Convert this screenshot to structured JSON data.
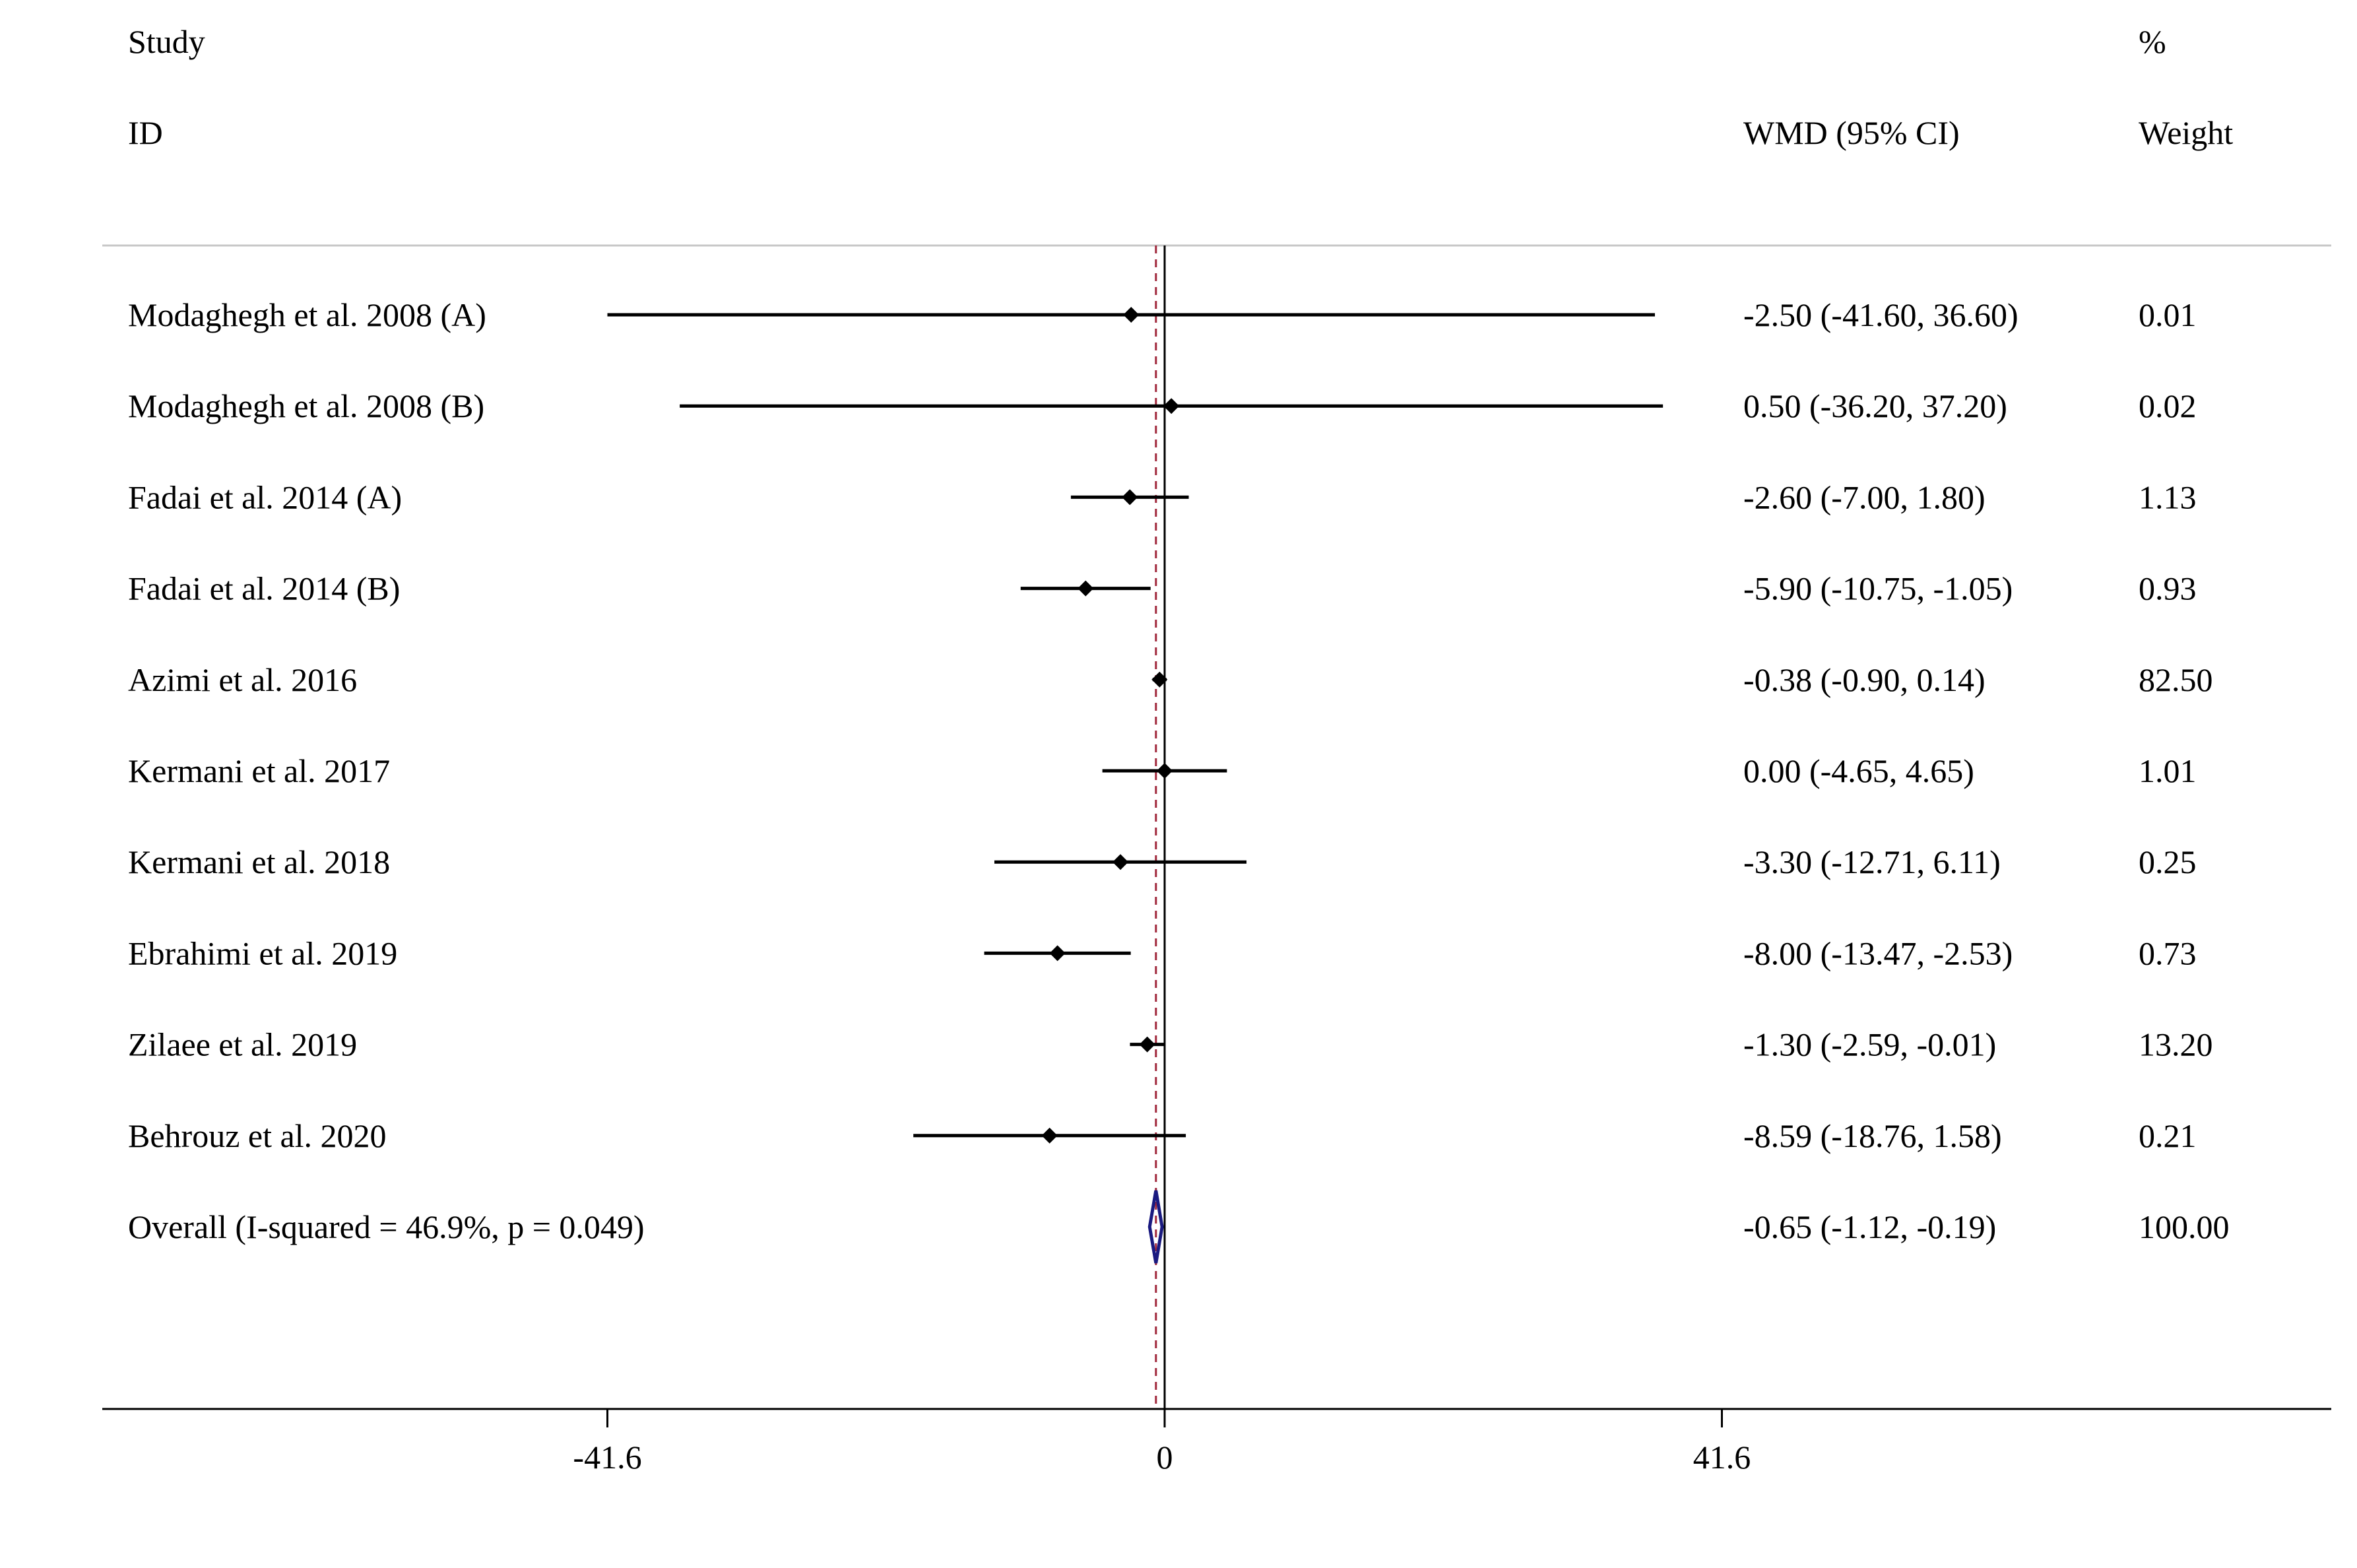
{
  "chart_data": {
    "type": "forest",
    "headers": {
      "study_line1": "Study",
      "study_line2": "ID",
      "effect": "WMD (95% CI)",
      "weight_line1": "%",
      "weight_line2": "Weight"
    },
    "studies": [
      {
        "id": "Modaghegh et al. 2008 (A)",
        "estimate": -2.5,
        "lower": -41.6,
        "upper": 36.6,
        "ci_text": "-2.50 (-41.60, 36.60)",
        "weight": "0.01"
      },
      {
        "id": "Modaghegh et al. 2008 (B)",
        "estimate": 0.5,
        "lower": -36.2,
        "upper": 37.2,
        "ci_text": "0.50 (-36.20, 37.20)",
        "weight": "0.02"
      },
      {
        "id": "Fadai et al. 2014 (A)",
        "estimate": -2.6,
        "lower": -7.0,
        "upper": 1.8,
        "ci_text": "-2.60 (-7.00, 1.80)",
        "weight": "1.13"
      },
      {
        "id": "Fadai et al. 2014 (B)",
        "estimate": -5.9,
        "lower": -10.75,
        "upper": -1.05,
        "ci_text": "-5.90 (-10.75, -1.05)",
        "weight": "0.93"
      },
      {
        "id": "Azimi et al. 2016",
        "estimate": -0.38,
        "lower": -0.9,
        "upper": 0.14,
        "ci_text": "-0.38 (-0.90, 0.14)",
        "weight": "82.50"
      },
      {
        "id": "Kermani et al. 2017",
        "estimate": 0.0,
        "lower": -4.65,
        "upper": 4.65,
        "ci_text": "0.00 (-4.65, 4.65)",
        "weight": "1.01"
      },
      {
        "id": "Kermani et al. 2018",
        "estimate": -3.3,
        "lower": -12.71,
        "upper": 6.11,
        "ci_text": "-3.30 (-12.71, 6.11)",
        "weight": "0.25"
      },
      {
        "id": "Ebrahimi et al. 2019",
        "estimate": -8.0,
        "lower": -13.47,
        "upper": -2.53,
        "ci_text": "-8.00 (-13.47, -2.53)",
        "weight": "0.73"
      },
      {
        "id": "Zilaee et al. 2019",
        "estimate": -1.3,
        "lower": -2.59,
        "upper": -0.01,
        "ci_text": "-1.30 (-2.59, -0.01)",
        "weight": "13.20"
      },
      {
        "id": "Behrouz et al. 2020",
        "estimate": -8.59,
        "lower": -18.76,
        "upper": 1.58,
        "ci_text": "-8.59 (-18.76, 1.58)",
        "weight": "0.21"
      }
    ],
    "overall": {
      "label": "Overall  (I-squared = 46.9%, p = 0.049)",
      "estimate": -0.65,
      "lower": -1.12,
      "upper": -0.19,
      "ci_text": "-0.65 (-1.12, -0.19)",
      "weight": "100.00"
    },
    "x_ticks": [
      {
        "value": -41.6,
        "label": "-41.6"
      },
      {
        "value": 0,
        "label": "0"
      },
      {
        "value": 41.6,
        "label": "41.6"
      }
    ],
    "reference_line": 0,
    "colors": {
      "ink": "#000000",
      "separator": "#c8c8c8",
      "overall_diamond": "#1a1a80",
      "overall_line": "#a0283c"
    }
  }
}
